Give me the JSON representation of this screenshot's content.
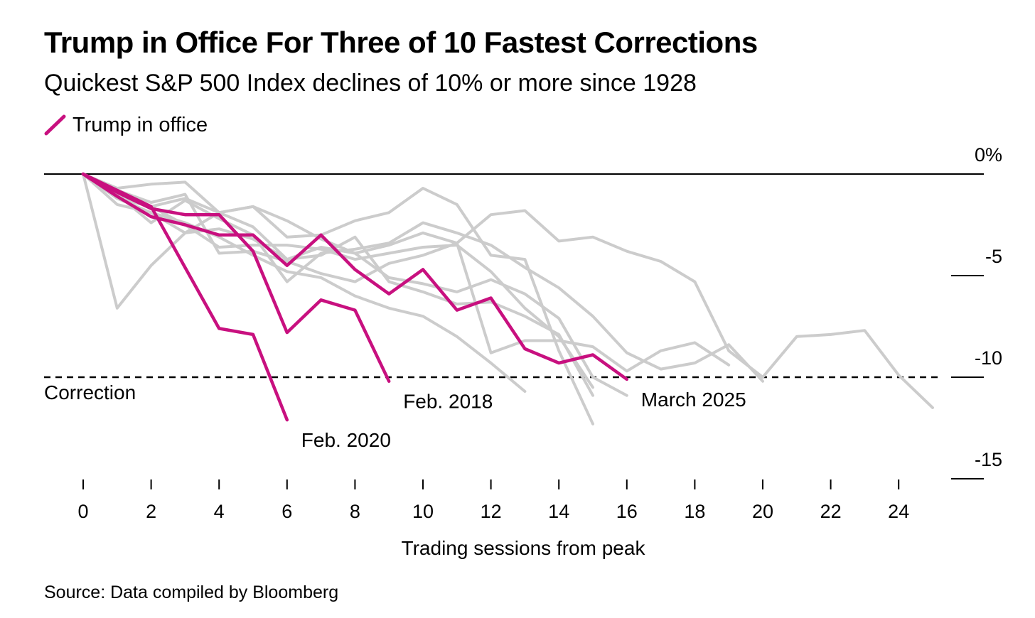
{
  "title": "Trump in Office For Three of 10 Fastest Corrections",
  "subtitle": "Quickest S&P 500 Index declines of 10% or more since 1928",
  "legend": {
    "label": "Trump in office",
    "color": "#c8107f"
  },
  "source": "Source: Data compiled by Bloomberg",
  "chart_data": {
    "type": "line",
    "title": "Trump in Office For Three of 10 Fastest Corrections",
    "subtitle": "Quickest S&P 500 Index declines of 10% or more since 1928",
    "xlabel": "Trading sessions from peak",
    "ylabel": "",
    "xlim": [
      0,
      25
    ],
    "ylim": [
      -15,
      0
    ],
    "x_ticks": [
      0,
      2,
      4,
      6,
      8,
      10,
      12,
      14,
      16,
      18,
      20,
      22,
      24
    ],
    "x_tick_labels": [
      "0",
      "2",
      "4",
      "6",
      "8",
      "10",
      "12",
      "14",
      "16",
      "18",
      "20",
      "22",
      "24"
    ],
    "y_ticks": [
      0,
      -5,
      -10,
      -15
    ],
    "y_tick_labels": [
      "0%",
      "-5",
      "-10",
      "-15"
    ],
    "reference_line": {
      "y": -10,
      "label": "Correction"
    },
    "grid": false,
    "legend_position": "top-left",
    "colors": {
      "trump": "#c8107f",
      "other": "#cccccc",
      "axis": "#000000"
    },
    "series": [
      {
        "y": [
          0,
          -6.6,
          -4.5,
          -2.9,
          -1.9,
          -1.6,
          -3.1,
          -3.0,
          -2.3,
          -1.9,
          -0.7,
          -1.5,
          -4.0,
          -4.2,
          -8.7,
          -12.3
        ]
      },
      {
        "y": [
          0,
          -0.7,
          -0.5,
          -0.4,
          -1.9,
          -2.6,
          -4.2,
          -3.6,
          -3.9,
          -5.1,
          -5.4,
          -5.8,
          -5.2,
          -5.9,
          -7.1,
          -10.0,
          -10.9
        ]
      },
      {
        "y": [
          0,
          -0.8,
          -1.4,
          -1.0,
          -3.9,
          -3.8,
          -4.3,
          -4.9,
          -5.3,
          -4.4,
          -4.0,
          -3.4,
          -2.0,
          -1.8,
          -3.3,
          -3.1,
          -3.8,
          -4.3,
          -5.3,
          -8.7,
          -10.0,
          -8.0,
          -7.9,
          -7.7,
          -9.9,
          -11.5
        ]
      },
      {
        "y": [
          0,
          -1.0,
          -1.6,
          -1.2,
          -1.9,
          -1.6,
          -2.3,
          -3.2,
          -3.9,
          -3.5,
          -2.9,
          -3.4,
          -8.8,
          -8.2,
          -8.2,
          -8.5,
          -9.7,
          -8.7,
          -8.3,
          -9.4
        ]
      },
      {
        "y": [
          0,
          -1.2,
          -1.9,
          -2.9,
          -2.7,
          -3.2,
          -4.2,
          -4.0,
          -3.1,
          -5.3,
          -5.8,
          -6.4,
          -6.3,
          -7.0,
          -7.9,
          -10.9
        ]
      },
      {
        "y": [
          0,
          -1.5,
          -1.9,
          -2.4,
          -3.1,
          -4.0,
          -4.8,
          -5.1,
          -6.0,
          -6.6,
          -7.0,
          -8.0,
          -9.3,
          -10.7
        ]
      },
      {
        "y": [
          0,
          -1.0,
          -2.4,
          -1.3,
          -2.2,
          -3.0,
          -5.3,
          -3.9,
          -3.7,
          -3.4,
          -2.4,
          -2.9,
          -3.5,
          -4.6,
          -5.6,
          -7.0,
          -8.8,
          -9.6,
          -9.3,
          -8.4,
          -10.2
        ]
      },
      {
        "y": [
          0,
          -1.2,
          -1.6,
          -2.5,
          -3.6,
          -3.5,
          -3.5,
          -3.7,
          -4.2,
          -3.9,
          -3.6,
          -3.5,
          -4.8,
          -6.6,
          -8.0,
          -10.5
        ]
      },
      {
        "name": "Feb. 2018",
        "trump": true,
        "y": [
          0,
          -0.9,
          -1.7,
          -2.0,
          -2.0,
          -3.8,
          -7.8,
          -6.2,
          -6.7,
          -10.2
        ]
      },
      {
        "name": "Feb. 2020",
        "trump": true,
        "y": [
          0,
          -0.8,
          -1.6,
          -4.6,
          -7.6,
          -7.9,
          -12.1
        ]
      },
      {
        "name": "March 2025",
        "trump": true,
        "y": [
          0,
          -1.1,
          -2.1,
          -2.5,
          -3.0,
          -3.0,
          -4.5,
          -3.0,
          -4.7,
          -5.9,
          -4.7,
          -6.7,
          -6.1,
          -8.6,
          -9.3,
          -8.9,
          -10.1
        ]
      }
    ]
  }
}
